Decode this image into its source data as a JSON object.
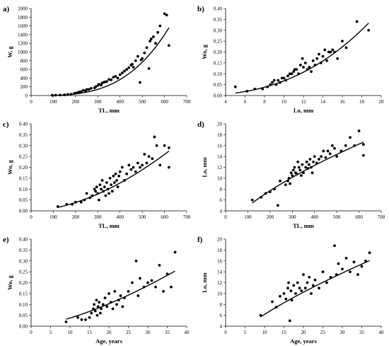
{
  "chart_data": [
    {
      "type": "scatter",
      "panel_label": "a)",
      "xlabel": "TL, mm",
      "ylabel": "W, g",
      "xlim": [
        0,
        700
      ],
      "ylim": [
        0,
        2000
      ],
      "xticks": [
        0,
        100,
        200,
        300,
        400,
        500,
        600,
        700
      ],
      "yticks": [
        0,
        200,
        400,
        600,
        800,
        1000,
        1200,
        1400,
        1600,
        1800,
        2000
      ],
      "grid": false,
      "fit": {
        "type": "power",
        "a": 9.5e-07,
        "b": 3.3
      },
      "points": [
        [
          95,
          5
        ],
        [
          110,
          8
        ],
        [
          130,
          10
        ],
        [
          150,
          15
        ],
        [
          165,
          25
        ],
        [
          180,
          30
        ],
        [
          195,
          50
        ],
        [
          205,
          60
        ],
        [
          215,
          80
        ],
        [
          225,
          90
        ],
        [
          235,
          120
        ],
        [
          245,
          105
        ],
        [
          250,
          140
        ],
        [
          260,
          140
        ],
        [
          270,
          165
        ],
        [
          285,
          175
        ],
        [
          290,
          200
        ],
        [
          300,
          230
        ],
        [
          305,
          260
        ],
        [
          315,
          240
        ],
        [
          320,
          290
        ],
        [
          330,
          310
        ],
        [
          340,
          320
        ],
        [
          350,
          370
        ],
        [
          360,
          360
        ],
        [
          370,
          420
        ],
        [
          380,
          440
        ],
        [
          390,
          400
        ],
        [
          400,
          480
        ],
        [
          410,
          520
        ],
        [
          420,
          560
        ],
        [
          430,
          600
        ],
        [
          440,
          640
        ],
        [
          450,
          700
        ],
        [
          455,
          720
        ],
        [
          460,
          650
        ],
        [
          470,
          800
        ],
        [
          480,
          900
        ],
        [
          490,
          300
        ],
        [
          495,
          820
        ],
        [
          500,
          850
        ],
        [
          510,
          980
        ],
        [
          520,
          1100
        ],
        [
          530,
          620
        ],
        [
          535,
          1250
        ],
        [
          540,
          1300
        ],
        [
          550,
          1350
        ],
        [
          560,
          1200
        ],
        [
          570,
          1450
        ],
        [
          580,
          1600
        ],
        [
          600,
          1880
        ],
        [
          610,
          1850
        ],
        [
          620,
          1150
        ]
      ]
    },
    {
      "type": "scatter",
      "panel_label": "b)",
      "xlabel": "Lo, mm",
      "ylabel": "Wo, g",
      "xlim": [
        4,
        20
      ],
      "ylim": [
        0,
        0.4
      ],
      "xticks": [
        4,
        6,
        8,
        10,
        12,
        14,
        16,
        18,
        20
      ],
      "yticks": [
        0,
        0.05,
        0.1,
        0.15,
        0.2,
        0.25,
        0.3,
        0.35,
        0.4
      ],
      "grid": false,
      "fit": {
        "type": "power",
        "a": 0.00019,
        "b": 2.55
      },
      "points": [
        [
          5,
          0.04
        ],
        [
          6.2,
          0.02
        ],
        [
          7,
          0.03
        ],
        [
          7.8,
          0.03
        ],
        [
          8.3,
          0.04
        ],
        [
          8.6,
          0.05
        ],
        [
          8.8,
          0.06
        ],
        [
          9,
          0.07
        ],
        [
          9.2,
          0.05
        ],
        [
          9.4,
          0.07
        ],
        [
          9.6,
          0.06
        ],
        [
          9.8,
          0.08
        ],
        [
          10,
          0.08
        ],
        [
          10.2,
          0.07
        ],
        [
          10.4,
          0.09
        ],
        [
          10.6,
          0.1
        ],
        [
          10.8,
          0.1
        ],
        [
          11,
          0.11
        ],
        [
          11.1,
          0.12
        ],
        [
          11.3,
          0.12
        ],
        [
          11.5,
          0.1
        ],
        [
          11.7,
          0.14
        ],
        [
          11.9,
          0.17
        ],
        [
          12,
          0.13
        ],
        [
          12.2,
          0.15
        ],
        [
          12.4,
          0.12
        ],
        [
          12.6,
          0.13
        ],
        [
          12.8,
          0.11
        ],
        [
          13,
          0.16
        ],
        [
          13.2,
          0.14
        ],
        [
          13.4,
          0.17
        ],
        [
          13.6,
          0.19
        ],
        [
          13.8,
          0.15
        ],
        [
          14,
          0.18
        ],
        [
          14.2,
          0.21
        ],
        [
          14.4,
          0.16
        ],
        [
          14.6,
          0.2
        ],
        [
          14.8,
          0.2
        ],
        [
          15,
          0.21
        ],
        [
          15.2,
          0.2
        ],
        [
          15.5,
          0.17
        ],
        [
          16,
          0.25
        ],
        [
          16.4,
          0.22
        ],
        [
          17.5,
          0.34
        ],
        [
          18.7,
          0.3
        ]
      ]
    },
    {
      "type": "scatter",
      "panel_label": "c)",
      "xlabel": "TL, mm",
      "ylabel": "Wo, g",
      "xlim": [
        0,
        700
      ],
      "ylim": [
        0,
        0.4
      ],
      "xticks": [
        0,
        100,
        200,
        300,
        400,
        500,
        600,
        700
      ],
      "yticks": [
        0,
        0.05,
        0.1,
        0.15,
        0.2,
        0.25,
        0.3,
        0.35,
        0.4
      ],
      "grid": false,
      "fit": {
        "type": "power",
        "a": 3.8e-06,
        "b": 1.74
      },
      "points": [
        [
          120,
          0.02
        ],
        [
          160,
          0.03
        ],
        [
          185,
          0.03
        ],
        [
          200,
          0.04
        ],
        [
          225,
          0.04
        ],
        [
          240,
          0.05
        ],
        [
          250,
          0.08
        ],
        [
          265,
          0.06
        ],
        [
          275,
          0.07
        ],
        [
          285,
          0.1
        ],
        [
          290,
          0.09
        ],
        [
          295,
          0.11
        ],
        [
          300,
          0.08
        ],
        [
          305,
          0.05
        ],
        [
          310,
          0.12
        ],
        [
          315,
          0.1
        ],
        [
          320,
          0.14
        ],
        [
          325,
          0.09
        ],
        [
          330,
          0.11
        ],
        [
          335,
          0.07
        ],
        [
          340,
          0.13
        ],
        [
          345,
          0.1
        ],
        [
          350,
          0.08
        ],
        [
          355,
          0.15
        ],
        [
          360,
          0.12
        ],
        [
          365,
          0.09
        ],
        [
          370,
          0.16
        ],
        [
          375,
          0.13
        ],
        [
          380,
          0.17
        ],
        [
          385,
          0.14
        ],
        [
          390,
          0.11
        ],
        [
          395,
          0.16
        ],
        [
          400,
          0.18
        ],
        [
          410,
          0.2
        ],
        [
          420,
          0.14
        ],
        [
          430,
          0.17
        ],
        [
          440,
          0.21
        ],
        [
          450,
          0.19
        ],
        [
          460,
          0.2
        ],
        [
          470,
          0.18
        ],
        [
          480,
          0.22
        ],
        [
          490,
          0.2
        ],
        [
          500,
          0.21
        ],
        [
          510,
          0.26
        ],
        [
          520,
          0.22
        ],
        [
          530,
          0.25
        ],
        [
          545,
          0.24
        ],
        [
          555,
          0.34
        ],
        [
          565,
          0.3
        ],
        [
          580,
          0.21
        ],
        [
          600,
          0.3
        ],
        [
          620,
          0.29
        ],
        [
          620,
          0.2
        ]
      ]
    },
    {
      "type": "scatter",
      "panel_label": "d)",
      "xlabel": "TL, mm",
      "ylabel": "Lo, mm",
      "xlim": [
        0,
        700
      ],
      "ylim": [
        4,
        20
      ],
      "xticks": [
        0,
        100,
        200,
        300,
        400,
        500,
        600,
        700
      ],
      "yticks": [
        4,
        6,
        8,
        10,
        12,
        14,
        16,
        18,
        20
      ],
      "grid": false,
      "fit": {
        "type": "power",
        "a": 0.21,
        "b": 0.68
      },
      "points": [
        [
          120,
          6
        ],
        [
          160,
          6.5
        ],
        [
          180,
          7.2
        ],
        [
          200,
          7.5
        ],
        [
          220,
          8
        ],
        [
          235,
          5
        ],
        [
          245,
          9.5
        ],
        [
          270,
          8.8
        ],
        [
          280,
          9.5
        ],
        [
          285,
          10
        ],
        [
          290,
          9
        ],
        [
          295,
          11
        ],
        [
          300,
          10.5
        ],
        [
          305,
          11.5
        ],
        [
          310,
          12
        ],
        [
          315,
          11
        ],
        [
          320,
          10.8
        ],
        [
          325,
          13
        ],
        [
          330,
          12
        ],
        [
          335,
          11.5
        ],
        [
          340,
          10.5
        ],
        [
          345,
          12.5
        ],
        [
          350,
          11
        ],
        [
          360,
          12
        ],
        [
          365,
          13
        ],
        [
          370,
          11.8
        ],
        [
          375,
          12.5
        ],
        [
          380,
          13.5
        ],
        [
          385,
          12
        ],
        [
          390,
          11
        ],
        [
          395,
          13
        ],
        [
          400,
          14
        ],
        [
          410,
          12.8
        ],
        [
          420,
          13.5
        ],
        [
          430,
          14
        ],
        [
          440,
          15
        ],
        [
          450,
          13.8
        ],
        [
          460,
          15
        ],
        [
          470,
          14.5
        ],
        [
          480,
          16
        ],
        [
          490,
          15.5
        ],
        [
          500,
          14
        ],
        [
          520,
          15
        ],
        [
          540,
          16
        ],
        [
          560,
          17.5
        ],
        [
          580,
          16
        ],
        [
          600,
          18.7
        ],
        [
          620,
          16.2
        ],
        [
          620,
          14.2
        ]
      ]
    },
    {
      "type": "scatter",
      "panel_label": "e)",
      "xlabel": "Age, years",
      "ylabel": "Wo, g",
      "xlim": [
        0,
        40
      ],
      "ylim": [
        0,
        0.4
      ],
      "xticks": [
        0,
        5,
        10,
        15,
        20,
        25,
        30,
        35,
        40
      ],
      "yticks": [
        0,
        0.05,
        0.1,
        0.15,
        0.2,
        0.25,
        0.3,
        0.35,
        0.4
      ],
      "grid": false,
      "fit": {
        "type": "power",
        "a": 0.0013,
        "b": 1.46
      },
      "points": [
        [
          9,
          0.02
        ],
        [
          12,
          0.04
        ],
        [
          13,
          0.03
        ],
        [
          14,
          0.03
        ],
        [
          15,
          0.04
        ],
        [
          15.5,
          0.06
        ],
        [
          16,
          0.08
        ],
        [
          16.2,
          0.1
        ],
        [
          16.5,
          0.07
        ],
        [
          16.8,
          0.12
        ],
        [
          17,
          0.05
        ],
        [
          17.2,
          0.09
        ],
        [
          17.5,
          0.11
        ],
        [
          17.8,
          0.06
        ],
        [
          18,
          0.08
        ],
        [
          18.5,
          0.1
        ],
        [
          19,
          0.13
        ],
        [
          19.5,
          0.09
        ],
        [
          20,
          0.15
        ],
        [
          20.5,
          0.11
        ],
        [
          21,
          0.08
        ],
        [
          21.5,
          0.16
        ],
        [
          22,
          0.1
        ],
        [
          22.5,
          0.12
        ],
        [
          23,
          0.14
        ],
        [
          23.5,
          0.09
        ],
        [
          24,
          0.13
        ],
        [
          25,
          0.16
        ],
        [
          26,
          0.2
        ],
        [
          27,
          0.3
        ],
        [
          27.5,
          0.14
        ],
        [
          28,
          0.22
        ],
        [
          29,
          0.18
        ],
        [
          30,
          0.2
        ],
        [
          31,
          0.21
        ],
        [
          32,
          0.18
        ],
        [
          33,
          0.28
        ],
        [
          34,
          0.16
        ],
        [
          35,
          0.24
        ],
        [
          36,
          0.18
        ],
        [
          37,
          0.34
        ]
      ]
    },
    {
      "type": "scatter",
      "panel_label": "f)",
      "xlabel": "Age, years",
      "ylabel": "Lo, mm",
      "xlim": [
        0,
        40
      ],
      "ylim": [
        4,
        20
      ],
      "xticks": [
        0,
        5,
        10,
        15,
        20,
        25,
        30,
        35,
        40
      ],
      "yticks": [
        4,
        6,
        8,
        10,
        12,
        14,
        16,
        18,
        20
      ],
      "grid": false,
      "fit": {
        "type": "power",
        "a": 1.15,
        "b": 0.73
      },
      "points": [
        [
          9,
          6
        ],
        [
          12,
          8.5
        ],
        [
          13,
          7.5
        ],
        [
          14,
          9.5
        ],
        [
          15,
          10
        ],
        [
          15.5,
          9
        ],
        [
          16,
          11
        ],
        [
          16.2,
          12
        ],
        [
          16.5,
          5
        ],
        [
          16.8,
          10.5
        ],
        [
          17,
          8.8
        ],
        [
          17.5,
          11.5
        ],
        [
          18,
          10
        ],
        [
          18.5,
          12
        ],
        [
          19,
          11
        ],
        [
          19.5,
          10.5
        ],
        [
          20,
          13.5
        ],
        [
          20.5,
          11
        ],
        [
          21,
          12
        ],
        [
          21.5,
          13
        ],
        [
          22,
          10
        ],
        [
          22.5,
          11.5
        ],
        [
          23,
          12.5
        ],
        [
          24,
          11
        ],
        [
          25,
          14
        ],
        [
          26,
          12
        ],
        [
          27,
          13
        ],
        [
          28,
          18.8
        ],
        [
          28.5,
          13.5
        ],
        [
          29,
          15.5
        ],
        [
          30,
          14.5
        ],
        [
          31,
          16.5
        ],
        [
          32,
          14
        ],
        [
          33,
          15.8
        ],
        [
          34,
          13.5
        ],
        [
          35,
          15
        ],
        [
          36,
          16
        ],
        [
          37,
          17.5
        ]
      ]
    }
  ]
}
